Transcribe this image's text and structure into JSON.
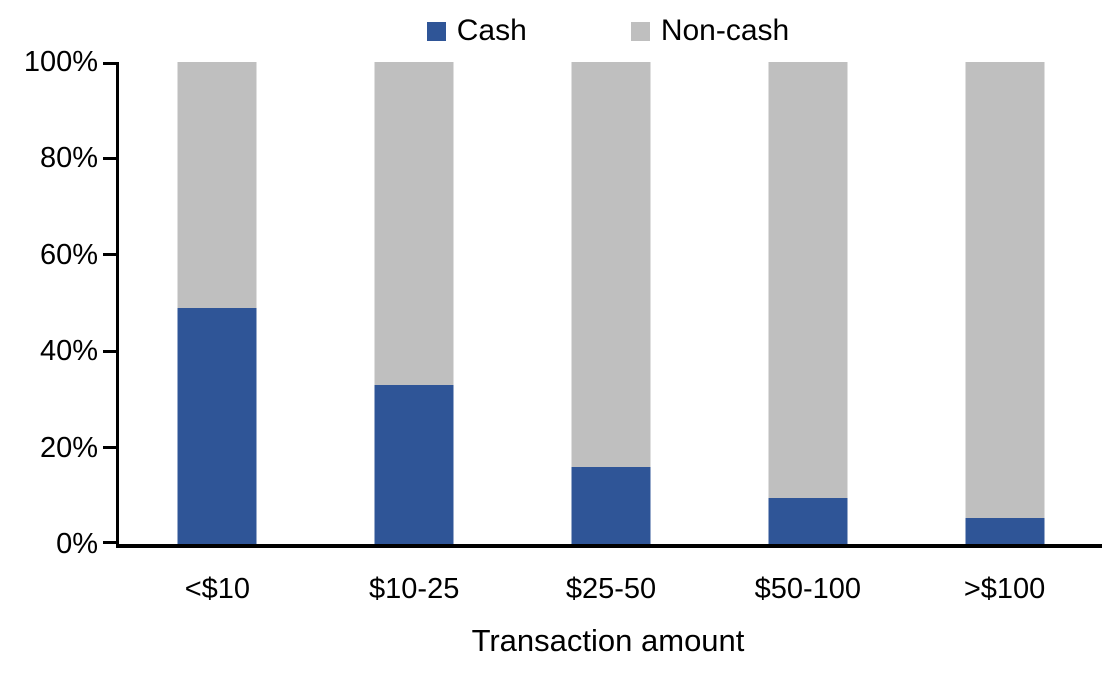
{
  "chart_data": {
    "type": "bar",
    "variant": "stacked-100",
    "title": "",
    "xlabel": "Transaction amount",
    "ylabel": "",
    "categories": [
      "<$10",
      "$10-25",
      "$25-50",
      "$50-100",
      ">$100"
    ],
    "series": [
      {
        "name": "Cash",
        "color": "#2F5597",
        "values": [
          49,
          33,
          16,
          9.5,
          5.5
        ]
      },
      {
        "name": "Non-cash",
        "color": "#BFBFBF",
        "values": [
          51,
          67,
          84,
          90.5,
          94.5
        ]
      }
    ],
    "y_axis": {
      "min": 0,
      "max": 100,
      "tick_step": 20,
      "tick_labels": [
        "0%",
        "20%",
        "40%",
        "60%",
        "80%",
        "100%"
      ]
    },
    "legend_position": "top",
    "grid": false,
    "stack_total": 100,
    "colors": {
      "axis": "#000000",
      "text": "#000000",
      "background": "#FFFFFF"
    }
  }
}
